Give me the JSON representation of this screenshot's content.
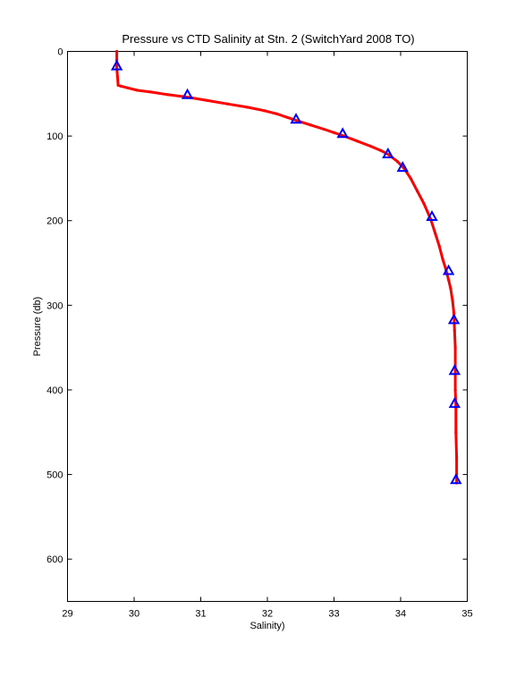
{
  "chart_data": {
    "type": "line",
    "title": "Pressure vs CTD Salinity at Stn. 2 (SwitchYard 2008 TO)",
    "xlabel": "Salinity)",
    "ylabel": "Pressure (db)",
    "xlim": [
      29,
      35
    ],
    "ylim": [
      0,
      650
    ],
    "y_reversed": true,
    "grid": false,
    "x_ticks": [
      29,
      30,
      31,
      32,
      33,
      34,
      35
    ],
    "y_ticks": [
      0,
      100,
      200,
      300,
      400,
      500,
      600
    ],
    "series": [
      {
        "style": "line",
        "color": "#ff0000",
        "x": [
          29.74,
          29.74,
          29.74,
          29.75,
          29.76,
          29.8,
          29.9,
          30.05,
          30.25,
          30.5,
          30.8,
          31.1,
          31.4,
          31.7,
          31.95,
          32.15,
          32.3,
          32.45,
          32.65,
          32.85,
          33.0,
          33.15,
          33.35,
          33.55,
          33.7,
          33.82,
          33.95,
          34.05,
          34.15,
          34.25,
          34.35,
          34.45,
          34.52,
          34.58,
          34.63,
          34.68,
          34.72,
          34.75,
          34.78,
          34.8,
          34.81,
          34.82,
          34.82,
          34.82,
          34.83,
          34.83,
          34.84,
          34.84,
          34.84
        ],
        "y": [
          0,
          10,
          20,
          30,
          40,
          41,
          43,
          46,
          48,
          51,
          54,
          58,
          62,
          66,
          70,
          74,
          78,
          82,
          87,
          92,
          96,
          100,
          106,
          112,
          117,
          122,
          130,
          138,
          150,
          165,
          180,
          198,
          215,
          230,
          245,
          258,
          270,
          280,
          295,
          310,
          330,
          350,
          380,
          400,
          420,
          450,
          480,
          500,
          510
        ]
      },
      {
        "style": "markers",
        "marker": "triangle",
        "color": "#0000ff",
        "x": [
          29.74,
          30.8,
          32.43,
          33.13,
          33.81,
          34.03,
          34.47,
          34.72,
          34.8,
          34.81,
          34.81,
          34.83
        ],
        "y": [
          17,
          51,
          80,
          97,
          121,
          137,
          195,
          259,
          317,
          377,
          416,
          506
        ]
      }
    ]
  }
}
